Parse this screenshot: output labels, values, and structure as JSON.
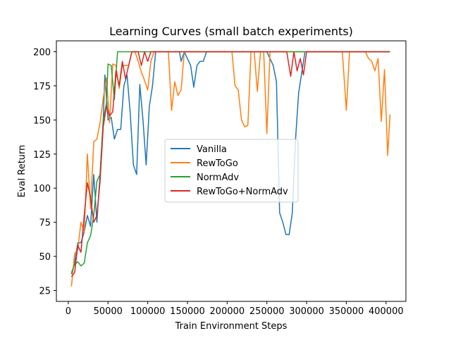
{
  "chart_data": {
    "type": "line",
    "title": "Learning Curves (small batch experiments)",
    "xlabel": "Train Environment Steps",
    "ylabel": "Eval Return",
    "xlim": [
      -15000,
      425000
    ],
    "ylim": [
      17,
      208
    ],
    "xticks": [
      0,
      50000,
      100000,
      150000,
      200000,
      250000,
      300000,
      350000,
      400000
    ],
    "yticks": [
      25,
      50,
      75,
      100,
      125,
      150,
      175,
      200
    ],
    "legend_position": "center",
    "series": [
      {
        "name": "Vanilla",
        "color": "#1f77b4",
        "points": [
          [
            4000,
            37
          ],
          [
            8000,
            45
          ],
          [
            12000,
            60
          ],
          [
            16000,
            60
          ],
          [
            20000,
            68
          ],
          [
            24000,
            80
          ],
          [
            28000,
            72
          ],
          [
            32000,
            110
          ],
          [
            36000,
            75
          ],
          [
            40000,
            110
          ],
          [
            44000,
            150
          ],
          [
            46000,
            183
          ],
          [
            50000,
            150
          ],
          [
            54000,
            152
          ],
          [
            58000,
            136
          ],
          [
            62000,
            143
          ],
          [
            66000,
            143
          ],
          [
            70000,
            175
          ],
          [
            74000,
            183
          ],
          [
            78000,
            155
          ],
          [
            82000,
            117
          ],
          [
            86000,
            110
          ],
          [
            90000,
            176
          ],
          [
            94000,
            150
          ],
          [
            98000,
            117
          ],
          [
            102000,
            160
          ],
          [
            106000,
            175
          ],
          [
            110000,
            200
          ],
          [
            130000,
            200
          ],
          [
            140000,
            200
          ],
          [
            142000,
            193
          ],
          [
            146000,
            200
          ],
          [
            150000,
            195
          ],
          [
            154000,
            190
          ],
          [
            158000,
            174
          ],
          [
            162000,
            190
          ],
          [
            166000,
            193
          ],
          [
            170000,
            193
          ],
          [
            174000,
            200
          ],
          [
            250000,
            200
          ],
          [
            254000,
            195
          ],
          [
            258000,
            190
          ],
          [
            262000,
            178
          ],
          [
            266000,
            82
          ],
          [
            270000,
            75
          ],
          [
            274000,
            66
          ],
          [
            278000,
            66
          ],
          [
            282000,
            82
          ],
          [
            286000,
            135
          ],
          [
            290000,
            170
          ],
          [
            294000,
            185
          ],
          [
            298000,
            200
          ],
          [
            405000,
            200
          ]
        ]
      },
      {
        "name": "RewToGo",
        "color": "#ff7f0e",
        "points": [
          [
            4000,
            28
          ],
          [
            8000,
            52
          ],
          [
            12000,
            55
          ],
          [
            16000,
            75
          ],
          [
            20000,
            68
          ],
          [
            24000,
            125
          ],
          [
            28000,
            85
          ],
          [
            32000,
            134
          ],
          [
            36000,
            136
          ],
          [
            40000,
            148
          ],
          [
            44000,
            166
          ],
          [
            48000,
            181
          ],
          [
            52000,
            148
          ],
          [
            56000,
            191
          ],
          [
            60000,
            190
          ],
          [
            64000,
            173
          ],
          [
            68000,
            190
          ],
          [
            72000,
            190
          ],
          [
            76000,
            190
          ],
          [
            80000,
            200
          ],
          [
            84000,
            200
          ],
          [
            88000,
            193
          ],
          [
            92000,
            185
          ],
          [
            96000,
            179
          ],
          [
            100000,
            172
          ],
          [
            104000,
            193
          ],
          [
            108000,
            200
          ],
          [
            126000,
            200
          ],
          [
            130000,
            157
          ],
          [
            134000,
            178
          ],
          [
            138000,
            168
          ],
          [
            142000,
            172
          ],
          [
            146000,
            200
          ],
          [
            206000,
            200
          ],
          [
            210000,
            175
          ],
          [
            214000,
            172
          ],
          [
            218000,
            150
          ],
          [
            222000,
            145
          ],
          [
            226000,
            146
          ],
          [
            230000,
            200
          ],
          [
            234000,
            200
          ],
          [
            238000,
            171
          ],
          [
            242000,
            200
          ],
          [
            246000,
            200
          ],
          [
            250000,
            140
          ],
          [
            254000,
            200
          ],
          [
            345000,
            200
          ],
          [
            350000,
            157
          ],
          [
            354000,
            200
          ],
          [
            374000,
            200
          ],
          [
            378000,
            195
          ],
          [
            382000,
            193
          ],
          [
            386000,
            186
          ],
          [
            390000,
            195
          ],
          [
            394000,
            149
          ],
          [
            398000,
            187
          ],
          [
            402000,
            124
          ],
          [
            405000,
            154
          ]
        ]
      },
      {
        "name": "NormAdv",
        "color": "#2ca02c",
        "points": [
          [
            4000,
            38
          ],
          [
            8000,
            44
          ],
          [
            12000,
            46
          ],
          [
            16000,
            43
          ],
          [
            20000,
            45
          ],
          [
            24000,
            60
          ],
          [
            28000,
            65
          ],
          [
            32000,
            80
          ],
          [
            36000,
            105
          ],
          [
            40000,
            110
          ],
          [
            44000,
            150
          ],
          [
            48000,
            162
          ],
          [
            50000,
            191
          ],
          [
            54000,
            190
          ],
          [
            58000,
            165
          ],
          [
            62000,
            200
          ],
          [
            405000,
            200
          ]
        ]
      },
      {
        "name": "RewToGo+NormAdv",
        "color": "#d62728",
        "points": [
          [
            4000,
            35
          ],
          [
            8000,
            38
          ],
          [
            12000,
            58
          ],
          [
            16000,
            53
          ],
          [
            20000,
            80
          ],
          [
            24000,
            104
          ],
          [
            28000,
            93
          ],
          [
            32000,
            75
          ],
          [
            36000,
            80
          ],
          [
            40000,
            105
          ],
          [
            44000,
            145
          ],
          [
            48000,
            160
          ],
          [
            52000,
            153
          ],
          [
            56000,
            156
          ],
          [
            60000,
            186
          ],
          [
            64000,
            175
          ],
          [
            68000,
            193
          ],
          [
            72000,
            180
          ],
          [
            76000,
            190
          ],
          [
            80000,
            200
          ],
          [
            84000,
            200
          ],
          [
            88000,
            200
          ],
          [
            92000,
            190
          ],
          [
            96000,
            200
          ],
          [
            100000,
            193
          ],
          [
            104000,
            200
          ],
          [
            275000,
            200
          ],
          [
            280000,
            182
          ],
          [
            284000,
            200
          ],
          [
            288000,
            186
          ],
          [
            292000,
            195
          ],
          [
            296000,
            183
          ],
          [
            300000,
            200
          ],
          [
            405000,
            200
          ]
        ]
      }
    ]
  }
}
